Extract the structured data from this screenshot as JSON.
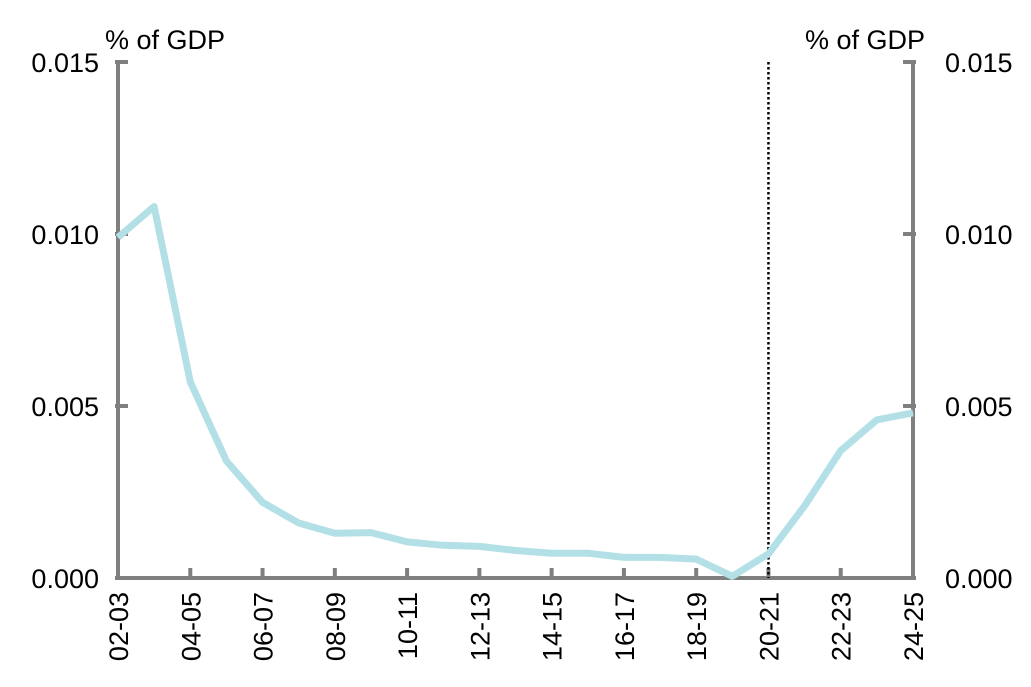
{
  "chart_data": {
    "type": "line",
    "left_axis_unit": "% of GDP",
    "right_axis_unit": "% of GDP",
    "x": [
      "02-03",
      "03-04",
      "04-05",
      "05-06",
      "06-07",
      "07-08",
      "08-09",
      "09-10",
      "10-11",
      "11-12",
      "12-13",
      "13-14",
      "14-15",
      "15-16",
      "16-17",
      "17-18",
      "18-19",
      "19-20",
      "20-21",
      "21-22",
      "22-23",
      "23-24",
      "24-25"
    ],
    "x_tick_labels": [
      "02-03",
      "04-05",
      "06-07",
      "08-09",
      "10-11",
      "12-13",
      "14-15",
      "16-17",
      "18-19",
      "20-21",
      "22-23",
      "24-25"
    ],
    "series": [
      {
        "color": "#b3e0e6",
        "values": [
          0.0099,
          0.0108,
          0.0057,
          0.0034,
          0.0022,
          0.0016,
          0.0013,
          0.00132,
          0.00105,
          0.00095,
          0.00092,
          0.0008,
          0.00072,
          0.00072,
          0.0006,
          0.0006,
          0.00055,
          5e-05,
          0.0007,
          0.0021,
          0.0037,
          0.0046,
          0.0048
        ]
      }
    ],
    "ylim": [
      0,
      0.015
    ],
    "y_ticks": [
      0,
      0.005,
      0.01,
      0.015
    ],
    "y_tick_labels": [
      "0.000",
      "0.005",
      "0.010",
      "0.015"
    ],
    "divider_after": "20-21",
    "axis_color": "#7f7f7f",
    "divider_color": "#000000"
  }
}
